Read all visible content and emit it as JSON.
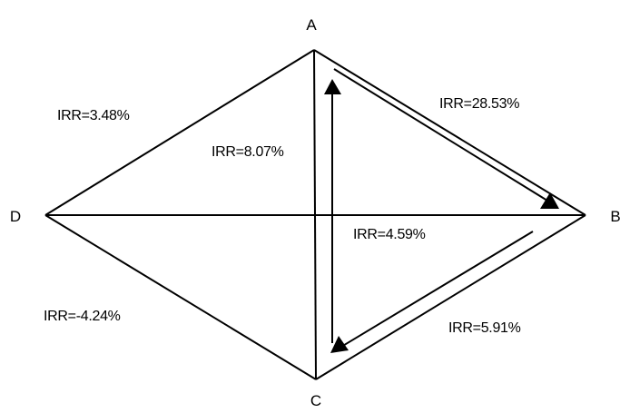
{
  "vertices": {
    "a": "A",
    "b": "B",
    "c": "C",
    "d": "D"
  },
  "edges": {
    "da": "IRR=3.48%",
    "ab": "IRR=28.53%",
    "ac": "IRR=8.07%",
    "db": "IRR=4.59%",
    "dc": "IRR=-4.24%",
    "bc": "IRR=5.91%"
  },
  "cycle": [
    "A",
    "B",
    "C",
    "A"
  ],
  "colors": {
    "stroke": "#000000",
    "background": "#ffffff"
  }
}
